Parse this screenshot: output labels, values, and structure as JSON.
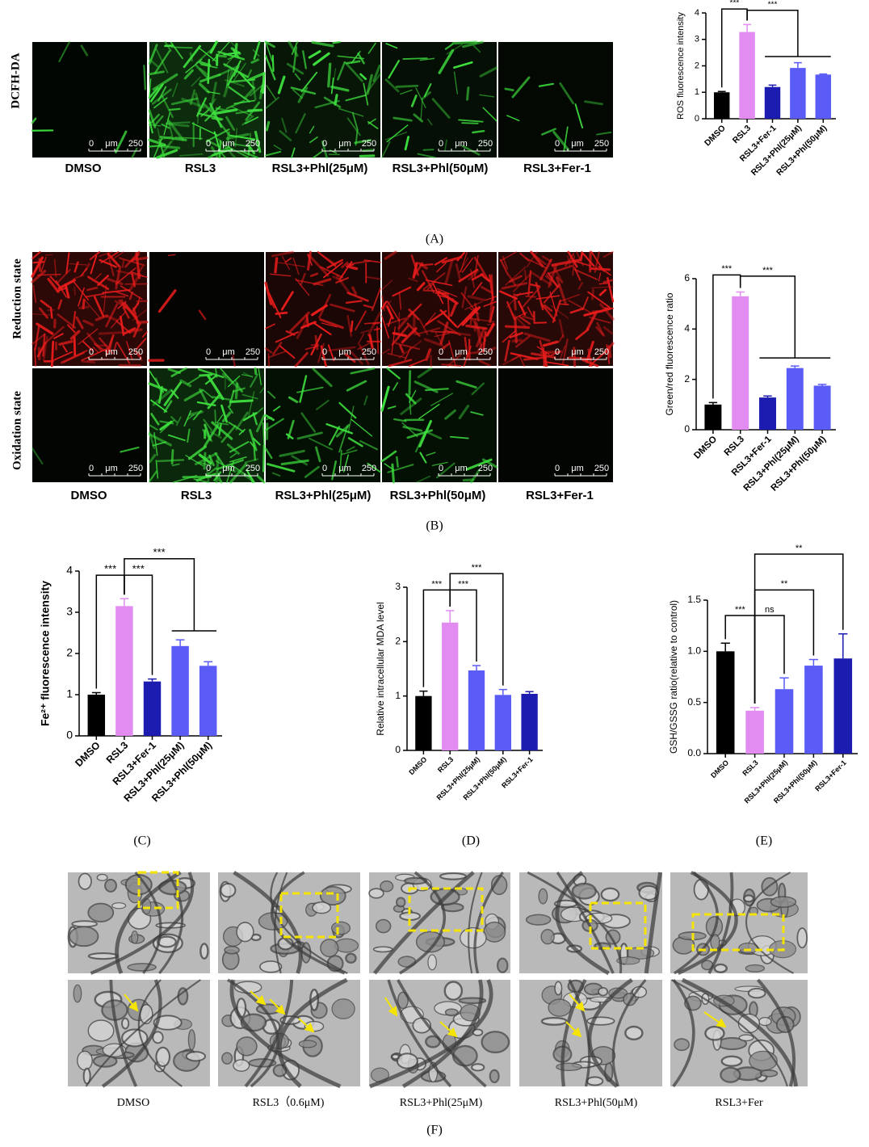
{
  "figure": {
    "panel_labels": [
      "(A)",
      "(B)",
      "(C)",
      "(D)",
      "(E)",
      "(F)"
    ],
    "scale_bar": {
      "start": "0",
      "unit": "μm",
      "end": "250"
    },
    "dcfh": {
      "row_label": "DCFH-DA",
      "columns": [
        "DMSO",
        "RSL3",
        "RSL3+Phl(25μM)",
        "RSL3+Phl(50μM)",
        "RSL3+Fer-1"
      ]
    },
    "gsh_images": {
      "row_labels": [
        "Reduction state",
        "Oxidation state"
      ],
      "columns": [
        "DMSO",
        "RSL3",
        "RSL3+Phl(25μM)",
        "RSL3+Phl(50μM)",
        "RSL3+Fer-1"
      ]
    },
    "tem": {
      "columns": [
        "DMSO",
        "RSL3（0.6μM)",
        "RSL3+Phl(25μM)",
        "RSL3+Phl(50μM)",
        "RSL3+Fer"
      ]
    }
  },
  "chart_data": [
    {
      "type": "bar",
      "y_label": "ROS fluorescence intensity",
      "categories": [
        "DMSO",
        "RSL3",
        "RSL3+Fer-1",
        "RSL3+Phl(25μM)",
        "RSL3+Phl(50μM)"
      ],
      "values": [
        1.0,
        3.28,
        1.2,
        1.92,
        1.67
      ],
      "errors": [
        0.03,
        0.28,
        0.07,
        0.2,
        0.02
      ],
      "colors": [
        "#000000",
        "#e28cf2",
        "#1c1cb0",
        "#5b5bf6",
        "#5b5bf6"
      ],
      "ylim": [
        0,
        4
      ],
      "yticks": [
        0,
        1,
        2,
        3,
        4
      ],
      "annotations": [
        "***",
        "***"
      ]
    },
    {
      "type": "bar",
      "y_label": "Green/red fluorescence ratio",
      "categories": [
        "DMSO",
        "RSL3",
        "RSL3+Fer-1",
        "RSL3+Phl(25μM)",
        "RSL3+Phl(50μM)"
      ],
      "values": [
        1.0,
        5.3,
        1.28,
        2.45,
        1.75
      ],
      "errors": [
        0.08,
        0.17,
        0.06,
        0.08,
        0.05
      ],
      "colors": [
        "#000000",
        "#e28cf2",
        "#1c1cb0",
        "#5b5bf6",
        "#5b5bf6"
      ],
      "ylim": [
        0,
        6
      ],
      "yticks": [
        0,
        2,
        4,
        6
      ],
      "annotations": [
        "***",
        "***"
      ]
    },
    {
      "type": "bar",
      "y_label": "Fe²⁺ fluorescence intensity",
      "categories": [
        "DMSO",
        "RSL3",
        "RSL3+Fer-1",
        "RSL3+Phl(25μM)",
        "RSL3+Phl(50μM)"
      ],
      "values": [
        1.0,
        3.15,
        1.32,
        2.18,
        1.7
      ],
      "errors": [
        0.05,
        0.18,
        0.06,
        0.15,
        0.1
      ],
      "colors": [
        "#000000",
        "#e28cf2",
        "#1c1cb0",
        "#5b5bf6",
        "#5b5bf6"
      ],
      "ylim": [
        0,
        4
      ],
      "yticks": [
        0,
        1,
        2,
        3,
        4
      ],
      "annotations": [
        "***",
        "***",
        "***"
      ]
    },
    {
      "type": "bar",
      "y_label": "Relative intracellular MDA level",
      "categories": [
        "DMSO",
        "RSL3",
        "RSL3+Phl(25μM)",
        "RSL3+Phl(50μM)",
        "RSL3+Fer-1"
      ],
      "values": [
        1.0,
        2.35,
        1.47,
        1.02,
        1.04
      ],
      "errors": [
        0.09,
        0.22,
        0.09,
        0.1,
        0.04
      ],
      "colors": [
        "#000000",
        "#e28cf2",
        "#5b5bf6",
        "#5b5bf6",
        "#1c1cb0"
      ],
      "ylim": [
        0,
        3
      ],
      "yticks": [
        0,
        1,
        2,
        3
      ],
      "annotations": [
        "***",
        "***",
        "***"
      ]
    },
    {
      "type": "bar",
      "y_label": "GSH/GSSG ratio(relative to control)",
      "categories": [
        "DMSO",
        "RSL3",
        "RSL3+Phl(25μM)",
        "RSL3+Phl(50μM)",
        "RSL3+Fer-1"
      ],
      "values": [
        1.0,
        0.42,
        0.63,
        0.86,
        0.93
      ],
      "errors": [
        0.08,
        0.03,
        0.11,
        0.06,
        0.24
      ],
      "colors": [
        "#000000",
        "#e28cf2",
        "#5b5bf6",
        "#5b5bf6",
        "#1c1cb0"
      ],
      "ylim": [
        0,
        1.5
      ],
      "yticks": [
        {
          "value": 0,
          "label": "0.0"
        },
        0.5,
        {
          "value": 1,
          "label": "1.0"
        },
        {
          "value": 1.5,
          "label": "1.5"
        }
      ],
      "annotations": [
        "***",
        "ns",
        "**",
        "**"
      ]
    }
  ]
}
